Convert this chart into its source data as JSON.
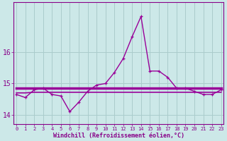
{
  "xlabel": "Windchill (Refroidissement éolien,°C)",
  "x_hours": [
    0,
    1,
    2,
    3,
    4,
    5,
    6,
    7,
    8,
    9,
    10,
    11,
    12,
    13,
    14,
    15,
    16,
    17,
    18,
    19,
    20,
    21,
    22,
    23
  ],
  "line1_y": [
    14.65,
    14.55,
    14.8,
    14.85,
    14.65,
    14.6,
    14.1,
    14.4,
    14.75,
    14.95,
    15.0,
    15.35,
    15.8,
    16.5,
    17.15,
    15.4,
    15.4,
    15.2,
    14.85,
    14.85,
    14.75,
    14.65,
    14.65,
    14.8
  ],
  "line2_y": [
    14.85,
    14.85,
    14.85,
    14.85,
    14.85,
    14.85,
    14.85,
    14.85,
    14.85,
    14.85,
    14.85,
    14.85,
    14.85,
    14.85,
    14.85,
    14.85,
    14.85,
    14.85,
    14.85,
    14.85,
    14.85,
    14.85,
    14.85,
    14.85
  ],
  "line3_y": [
    14.7,
    14.7,
    14.72,
    14.72,
    14.72,
    14.72,
    14.72,
    14.72,
    14.72,
    14.72,
    14.72,
    14.72,
    14.72,
    14.72,
    14.72,
    14.72,
    14.72,
    14.72,
    14.72,
    14.72,
    14.72,
    14.72,
    14.72,
    14.72
  ],
  "line_color": "#990099",
  "bg_color": "#cce8e8",
  "grid_color": "#aacccc",
  "axis_color": "#880088",
  "ylim_min": 13.7,
  "ylim_max": 17.6,
  "yticks": [
    14,
    15,
    16
  ],
  "xlim_min": -0.3,
  "xlim_max": 23.3,
  "figsize": [
    3.2,
    2.0
  ],
  "dpi": 100
}
